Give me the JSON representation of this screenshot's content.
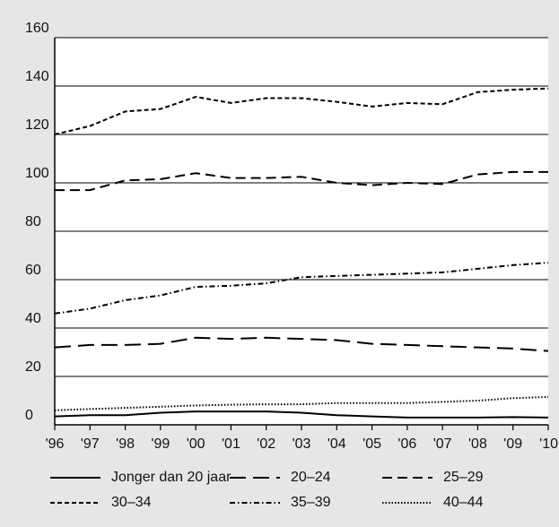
{
  "chart_data": {
    "type": "line",
    "title": "",
    "xlabel": "",
    "ylabel": "",
    "x": [
      "'96",
      "'97",
      "'98",
      "'99",
      "'00",
      "'01",
      "'02",
      "'03",
      "'04",
      "'05",
      "'06",
      "'07",
      "'08",
      "'09",
      "'10"
    ],
    "y_ticks": [
      0,
      20,
      40,
      60,
      80,
      100,
      120,
      140,
      160
    ],
    "ylim": [
      0,
      160
    ],
    "grid": "horizontal",
    "legend_placement": "bottom",
    "series": [
      {
        "name": "Jonger dan 20 jaar",
        "style": "solid",
        "values": [
          3.5,
          4,
          4,
          5,
          5.5,
          5.5,
          5.5,
          5,
          4,
          3.5,
          3,
          3,
          3,
          3.2,
          3
        ]
      },
      {
        "name": "20–24",
        "style": "long-dash",
        "values": [
          32,
          33,
          33,
          33.5,
          36,
          35.5,
          36,
          35.5,
          35,
          33.5,
          33,
          32.5,
          32,
          31.5,
          30.5
        ]
      },
      {
        "name": "25–29",
        "style": "dash",
        "values": [
          97,
          97,
          101,
          101.5,
          104,
          102,
          102,
          102.5,
          100,
          99,
          100,
          99.5,
          103.5,
          104.5,
          104.5
        ]
      },
      {
        "name": "30–34",
        "style": "short-dash",
        "values": [
          120,
          123.5,
          129.5,
          130.5,
          135.5,
          133,
          135,
          135,
          133.5,
          131.5,
          133,
          132.5,
          137.5,
          138.5,
          139
        ]
      },
      {
        "name": "35–39",
        "style": "dash-dot",
        "values": [
          46,
          48,
          51.5,
          53.5,
          57,
          57.5,
          58.5,
          61,
          61.5,
          62,
          62.5,
          63,
          64.5,
          66,
          67
        ]
      },
      {
        "name": "40–44",
        "style": "dotted",
        "values": [
          6,
          6.5,
          7,
          7.5,
          8,
          8.3,
          8.5,
          8.5,
          9,
          9,
          9,
          9.5,
          10,
          11,
          11.5
        ]
      }
    ]
  }
}
